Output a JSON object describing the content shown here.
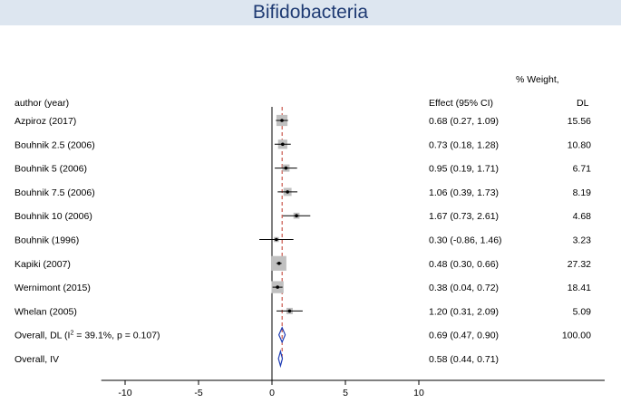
{
  "chart_data": {
    "type": "forest",
    "title": "Bifidobacteria",
    "columns": {
      "study": "author (year)",
      "effect": "Effect (95% CI)",
      "weight_line1": "% Weight,",
      "weight_line2": "DL"
    },
    "studies": [
      {
        "label": "Azpiroz (2017)",
        "est": 0.68,
        "lo": 0.27,
        "hi": 1.09,
        "ci_text": "0.68 (0.27, 1.09)",
        "weight": 15.56,
        "weight_text": "15.56"
      },
      {
        "label": "Bouhnik 2.5 (2006)",
        "est": 0.73,
        "lo": 0.18,
        "hi": 1.28,
        "ci_text": "0.73 (0.18, 1.28)",
        "weight": 10.8,
        "weight_text": "10.80"
      },
      {
        "label": "Bouhnik 5 (2006)",
        "est": 0.95,
        "lo": 0.19,
        "hi": 1.71,
        "ci_text": "0.95 (0.19, 1.71)",
        "weight": 6.71,
        "weight_text": "6.71"
      },
      {
        "label": "Bouhnik 7.5 (2006)",
        "est": 1.06,
        "lo": 0.39,
        "hi": 1.73,
        "ci_text": "1.06 (0.39, 1.73)",
        "weight": 8.19,
        "weight_text": "8.19"
      },
      {
        "label": "Bouhnik 10 (2006)",
        "est": 1.67,
        "lo": 0.73,
        "hi": 2.61,
        "ci_text": "1.67 (0.73, 2.61)",
        "weight": 4.68,
        "weight_text": "4.68"
      },
      {
        "label": "Bouhnik (1996)",
        "est": 0.3,
        "lo": -0.86,
        "hi": 1.46,
        "ci_text": "0.30 (-0.86, 1.46)",
        "weight": 3.23,
        "weight_text": "3.23"
      },
      {
        "label": "Kapiki (2007)",
        "est": 0.48,
        "lo": 0.3,
        "hi": 0.66,
        "ci_text": "0.48 (0.30, 0.66)",
        "weight": 27.32,
        "weight_text": "27.32"
      },
      {
        "label": "Wernimont (2015)",
        "est": 0.38,
        "lo": 0.04,
        "hi": 0.72,
        "ci_text": "0.38 (0.04, 0.72)",
        "weight": 18.41,
        "weight_text": "18.41"
      },
      {
        "label": "Whelan (2005)",
        "est": 1.2,
        "lo": 0.31,
        "hi": 2.09,
        "ci_text": "1.20 (0.31, 2.09)",
        "weight": 5.09,
        "weight_text": "5.09"
      }
    ],
    "overall": [
      {
        "label_prefix": "Overall, DL (I",
        "label_sup": "2",
        "label_suffix": " = 39.1%, p = 0.107)",
        "est": 0.69,
        "lo": 0.47,
        "hi": 0.9,
        "ci_text": "0.69 (0.47, 0.90)",
        "weight_text": "100.00"
      },
      {
        "label_prefix": "Overall, IV",
        "label_sup": "",
        "label_suffix": "",
        "est": 0.58,
        "lo": 0.44,
        "hi": 0.71,
        "ci_text": "0.58 (0.44, 0.71)",
        "weight_text": ""
      }
    ],
    "xaxis": {
      "ticks": [
        -10,
        -5,
        0,
        5,
        10
      ],
      "tick_labels": [
        "-10",
        "-5",
        "0",
        "5",
        "10"
      ],
      "range": [
        -11.5,
        10
      ]
    },
    "reference_line": 0,
    "pooled_line": 0.69,
    "colors": {
      "title": "#1f3b73",
      "title_band": "#dde6f0",
      "box": "#c0c0c0",
      "diamond": "#1e3cb4",
      "pooled_line": "#c0392b"
    }
  }
}
